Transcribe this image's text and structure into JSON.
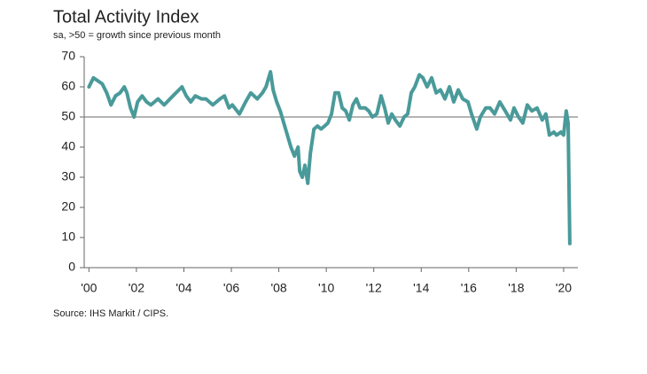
{
  "chart_data": {
    "type": "line",
    "title": "Total Activity Index",
    "subtitle": "sa, >50 = growth since previous month",
    "source": "Source: IHS Markit / CIPS.",
    "color": "#4a9a9a",
    "reference_line": 50,
    "xlim": [
      1999.8,
      2020.6
    ],
    "xticks": [
      {
        "value": 2000,
        "label": "'00"
      },
      {
        "value": 2002,
        "label": "'02"
      },
      {
        "value": 2004,
        "label": "'04"
      },
      {
        "value": 2006,
        "label": "'06"
      },
      {
        "value": 2008,
        "label": "'08"
      },
      {
        "value": 2010,
        "label": "'10"
      },
      {
        "value": 2012,
        "label": "'12"
      },
      {
        "value": 2014,
        "label": "'14"
      },
      {
        "value": 2016,
        "label": "'16"
      },
      {
        "value": 2018,
        "label": "'18"
      },
      {
        "value": 2020,
        "label": "'20"
      }
    ],
    "ylim": [
      0,
      70
    ],
    "yticks": [
      0,
      10,
      20,
      30,
      40,
      50,
      60,
      70
    ],
    "x": [
      2000.0,
      2000.19,
      2000.56,
      2000.75,
      2000.93,
      2001.12,
      2001.31,
      2001.49,
      2001.6,
      2001.75,
      2001.9,
      2002.05,
      2002.24,
      2002.43,
      2002.61,
      2002.91,
      2003.17,
      2003.54,
      2003.92,
      2004.1,
      2004.29,
      2004.48,
      2004.74,
      2004.93,
      2005.22,
      2005.52,
      2005.71,
      2005.9,
      2006.04,
      2006.34,
      2006.6,
      2006.82,
      2007.09,
      2007.31,
      2007.46,
      2007.65,
      2007.76,
      2007.91,
      2008.06,
      2008.21,
      2008.36,
      2008.51,
      2008.66,
      2008.81,
      2008.88,
      2008.99,
      2009.1,
      2009.22,
      2009.33,
      2009.48,
      2009.63,
      2009.78,
      2009.93,
      2010.07,
      2010.22,
      2010.37,
      2010.52,
      2010.67,
      2010.82,
      2010.97,
      2011.12,
      2011.27,
      2011.42,
      2011.64,
      2011.79,
      2011.94,
      2012.13,
      2012.31,
      2012.46,
      2012.61,
      2012.76,
      2012.91,
      2013.1,
      2013.28,
      2013.43,
      2013.58,
      2013.73,
      2013.92,
      2014.07,
      2014.25,
      2014.44,
      2014.63,
      2014.81,
      2015.0,
      2015.19,
      2015.37,
      2015.56,
      2015.75,
      2015.97,
      2016.12,
      2016.34,
      2016.49,
      2016.72,
      2016.9,
      2017.09,
      2017.31,
      2017.54,
      2017.76,
      2017.91,
      2018.1,
      2018.28,
      2018.47,
      2018.66,
      2018.88,
      2019.1,
      2019.25,
      2019.4,
      2019.59,
      2019.7,
      2019.89,
      2020.0,
      2020.11,
      2020.19,
      2020.26
    ],
    "values": [
      60,
      63,
      61,
      58,
      54,
      57,
      58,
      60,
      58,
      53,
      50,
      55,
      57,
      55,
      54,
      56,
      54,
      57,
      60,
      57,
      55,
      57,
      56,
      56,
      54,
      56,
      57,
      53,
      54,
      51,
      55,
      58,
      56,
      58,
      60,
      65,
      59,
      55,
      52,
      48,
      44,
      40,
      37,
      40,
      32,
      30,
      34,
      28,
      38,
      46,
      47,
      46,
      47,
      48,
      51,
      58,
      58,
      53,
      52,
      49,
      54,
      56,
      53,
      53,
      52,
      50,
      51,
      57,
      53,
      48,
      51,
      49,
      47,
      50,
      51,
      58,
      60,
      64,
      63,
      60,
      63,
      58,
      59,
      56,
      60,
      55,
      59,
      56,
      55,
      51,
      46,
      50,
      53,
      53,
      51,
      55,
      52,
      49,
      53,
      50,
      48,
      54,
      52,
      53,
      49,
      51,
      44,
      45,
      44,
      45,
      44,
      52,
      48,
      8
    ]
  }
}
